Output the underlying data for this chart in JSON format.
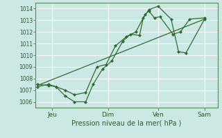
{
  "bg_color": "#cce8e4",
  "grid_color": "#b0d8d2",
  "line_color": "#2d6a2d",
  "marker_color": "#2d6a2d",
  "ylim": [
    1005.5,
    1014.5
  ],
  "yticks": [
    1006,
    1007,
    1008,
    1009,
    1010,
    1011,
    1012,
    1013,
    1014
  ],
  "xlabel": "Pression niveau de la mer( hPa )",
  "x_tick_positions": [
    0.08,
    0.38,
    0.65,
    0.9
  ],
  "x_tick_labels": [
    "Jeu",
    "Dim",
    "Ven",
    "Sam"
  ],
  "line1_x": [
    0.0,
    0.06,
    0.1,
    0.15,
    0.2,
    0.26,
    0.3,
    0.35,
    0.4,
    0.46,
    0.5,
    0.55,
    0.57,
    0.6,
    0.65,
    0.72,
    0.76,
    0.8,
    0.9
  ],
  "line1_y": [
    1007.3,
    1007.5,
    1007.3,
    1006.5,
    1006.0,
    1006.0,
    1007.5,
    1008.8,
    1009.5,
    1011.2,
    1011.8,
    1011.7,
    1013.2,
    1013.9,
    1014.2,
    1013.1,
    1010.3,
    1010.2,
    1013.1
  ],
  "line2_x": [
    0.0,
    0.06,
    0.1,
    0.15,
    0.2,
    0.26,
    0.32,
    0.37,
    0.42,
    0.48,
    0.53,
    0.58,
    0.6,
    0.63,
    0.66,
    0.73,
    0.77,
    0.82,
    0.9
  ],
  "line2_y": [
    1007.5,
    1007.4,
    1007.3,
    1007.0,
    1006.6,
    1006.8,
    1009.0,
    1009.2,
    1010.8,
    1011.6,
    1012.0,
    1013.5,
    1013.8,
    1013.2,
    1013.3,
    1011.8,
    1012.0,
    1013.1,
    1013.2
  ],
  "trend_x": [
    0.0,
    0.9
  ],
  "trend_y": [
    1007.4,
    1013.1
  ],
  "xlim": [
    -0.01,
    0.97
  ]
}
